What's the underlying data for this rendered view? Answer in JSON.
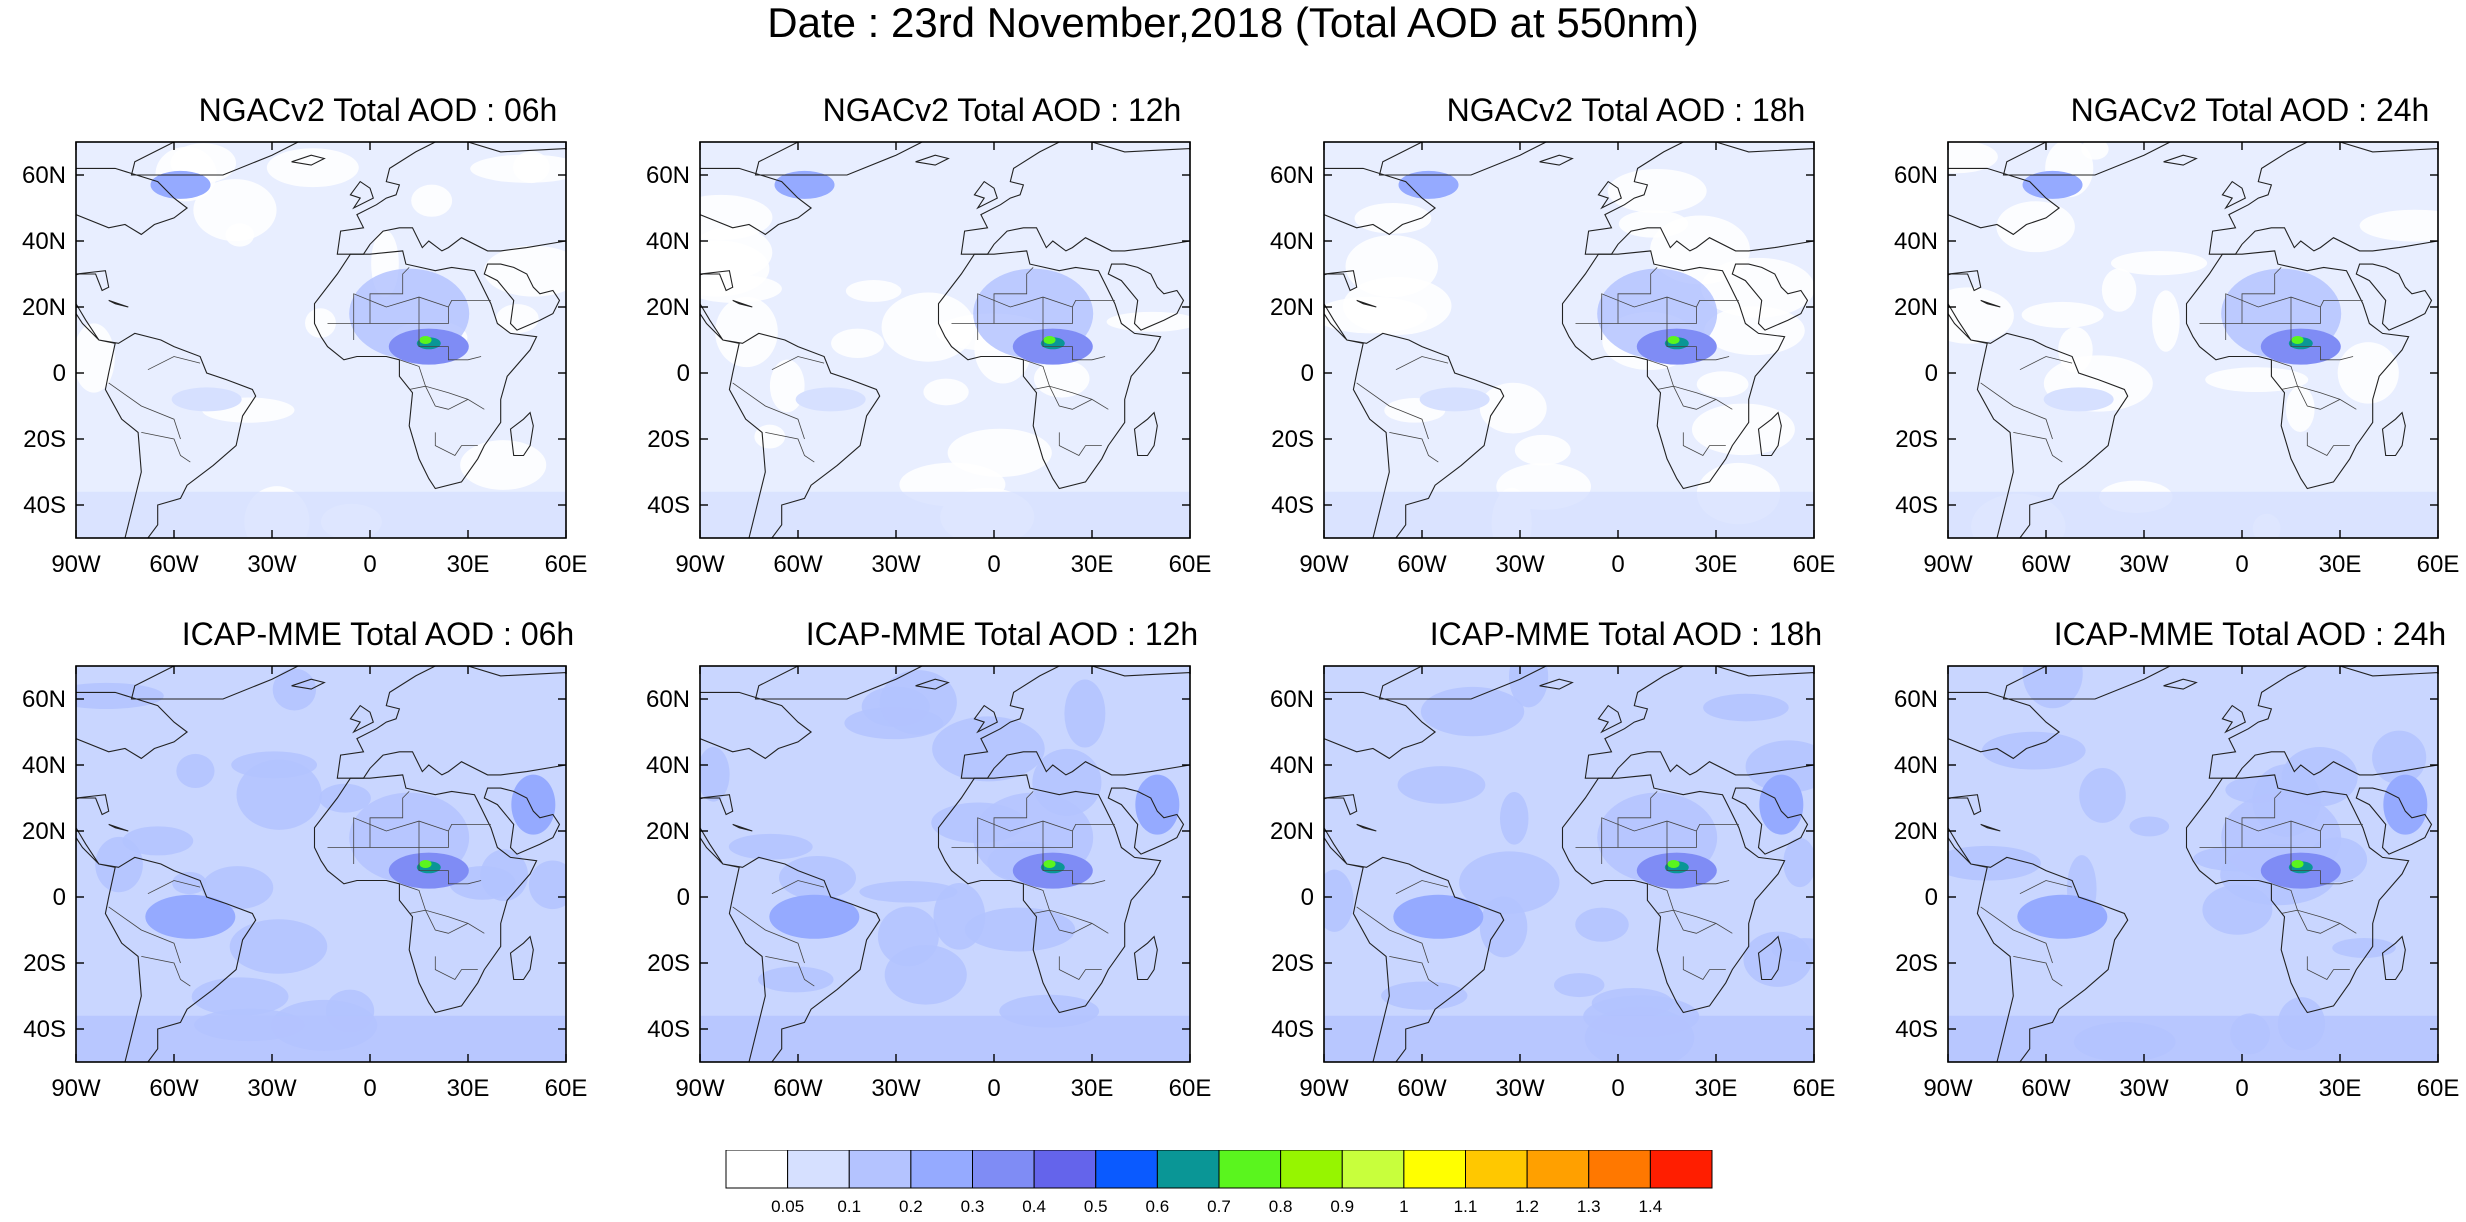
{
  "title": "Date : 23rd November,2018 (Total AOD at 550nm)",
  "map_extent": {
    "lon": [
      -90,
      60
    ],
    "lat": [
      -50,
      70
    ]
  },
  "x_ticks": [
    {
      "value": -90,
      "label": "90W"
    },
    {
      "value": -60,
      "label": "60W"
    },
    {
      "value": -30,
      "label": "30W"
    },
    {
      "value": 0,
      "label": "0"
    },
    {
      "value": 30,
      "label": "30E"
    },
    {
      "value": 60,
      "label": "60E"
    }
  ],
  "y_ticks": [
    {
      "value": 60,
      "label": "60N"
    },
    {
      "value": 40,
      "label": "40N"
    },
    {
      "value": 20,
      "label": "20N"
    },
    {
      "value": 0,
      "label": "0"
    },
    {
      "value": -20,
      "label": "20S"
    },
    {
      "value": -40,
      "label": "40S"
    }
  ],
  "panels": [
    {
      "title": "NGACv2 Total AOD : 06h"
    },
    {
      "title": "NGACv2 Total AOD : 12h"
    },
    {
      "title": "NGACv2 Total AOD : 18h"
    },
    {
      "title": "NGACv2 Total AOD : 24h"
    },
    {
      "title": "ICAP-MME Total AOD : 06h"
    },
    {
      "title": "ICAP-MME Total AOD : 12h"
    },
    {
      "title": "ICAP-MME Total AOD : 18h"
    },
    {
      "title": "ICAP-MME Total AOD : 24h"
    }
  ],
  "colorbar": {
    "colors": [
      "#ffffff",
      "#d6e0ff",
      "#b4c3ff",
      "#95aaff",
      "#7f8cf5",
      "#6464eb",
      "#0a5aff",
      "#0a9696",
      "#5af51e",
      "#96f500",
      "#c8ff3c",
      "#ffff00",
      "#ffc800",
      "#ffa000",
      "#ff7800",
      "#ff1e00"
    ],
    "labels": [
      "0.05",
      "0.1",
      "0.2",
      "0.3",
      "0.4",
      "0.5",
      "0.6",
      "0.7",
      "0.8",
      "0.9",
      "1",
      "1.1",
      "1.2",
      "1.3",
      "1.4"
    ]
  }
}
